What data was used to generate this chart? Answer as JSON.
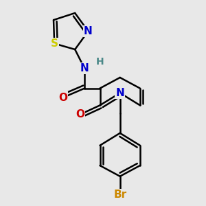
{
  "background_color": "#e8e8e8",
  "atom_colors": {
    "C": "#000000",
    "N": "#0000cc",
    "O": "#cc0000",
    "S": "#cccc00",
    "Br": "#cc8800",
    "H": "#4a8888"
  },
  "bond_color": "#000000",
  "bond_width": 1.8,
  "font_size": 11
}
